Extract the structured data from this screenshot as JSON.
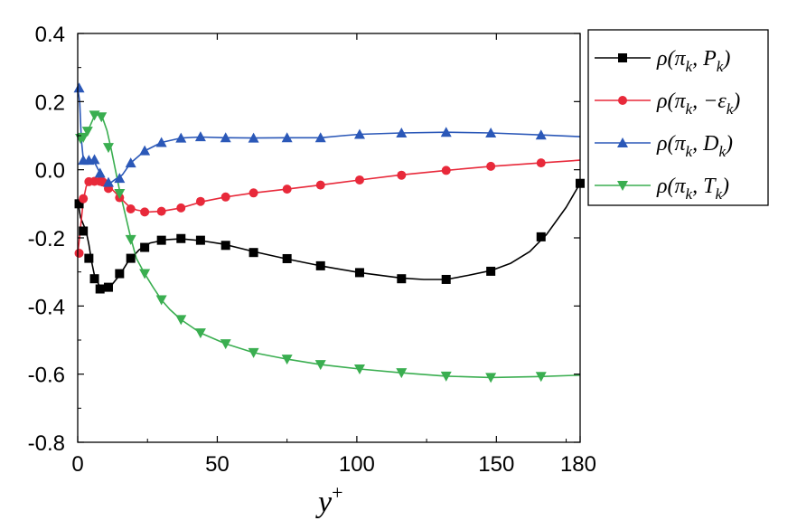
{
  "chart_data": {
    "type": "line",
    "title": "",
    "xlabel": "y",
    "xlabel_sup": "+",
    "ylabel": "",
    "xlim": [
      0,
      180
    ],
    "ylim": [
      -0.8,
      0.4
    ],
    "xticks": [
      0,
      50,
      100,
      150,
      180
    ],
    "xtick_labels": [
      "0",
      "50",
      "100",
      "150",
      "180"
    ],
    "yticks": [
      0.4,
      0.2,
      0.0,
      -0.2,
      -0.4,
      -0.6,
      -0.8
    ],
    "ytick_labels": [
      "0.4",
      "0.2",
      "0.0",
      "-0.2",
      "-0.4",
      "-0.6",
      "-0.8"
    ],
    "grid": false,
    "legend_position": "right",
    "series": [
      {
        "name": "ρ(π_k, P_k)",
        "color": "#000000",
        "marker": "square",
        "legend": [
          {
            "t": "ρ(π"
          },
          {
            "t": "k",
            "sub": true
          },
          {
            "t": ", P"
          },
          {
            "t": "k",
            "sub": true
          },
          {
            "t": ")"
          }
        ],
        "curve": [
          [
            0,
            -0.09
          ],
          [
            1,
            -0.14
          ],
          [
            3,
            -0.18
          ],
          [
            4,
            -0.22
          ],
          [
            5,
            -0.27
          ],
          [
            6,
            -0.31
          ],
          [
            8,
            -0.345
          ],
          [
            10,
            -0.35
          ],
          [
            12,
            -0.34
          ],
          [
            15,
            -0.31
          ],
          [
            18,
            -0.27
          ],
          [
            22,
            -0.235
          ],
          [
            26,
            -0.215
          ],
          [
            32,
            -0.205
          ],
          [
            37,
            -0.203
          ],
          [
            44,
            -0.208
          ],
          [
            52,
            -0.218
          ],
          [
            63,
            -0.24
          ],
          [
            75,
            -0.262
          ],
          [
            87,
            -0.282
          ],
          [
            101,
            -0.302
          ],
          [
            116,
            -0.318
          ],
          [
            124,
            -0.322
          ],
          [
            132,
            -0.322
          ],
          [
            140,
            -0.31
          ],
          [
            148,
            -0.296
          ],
          [
            155,
            -0.275
          ],
          [
            162,
            -0.24
          ],
          [
            168,
            -0.19
          ],
          [
            175,
            -0.11
          ],
          [
            180,
            -0.04
          ]
        ],
        "markers": [
          [
            0.5,
            -0.1
          ],
          [
            2,
            -0.18
          ],
          [
            4,
            -0.26
          ],
          [
            6,
            -0.32
          ],
          [
            8,
            -0.35
          ],
          [
            11,
            -0.345
          ],
          [
            15,
            -0.305
          ],
          [
            19,
            -0.26
          ],
          [
            24,
            -0.228
          ],
          [
            30,
            -0.207
          ],
          [
            37,
            -0.202
          ],
          [
            44,
            -0.207
          ],
          [
            53,
            -0.222
          ],
          [
            63,
            -0.243
          ],
          [
            75,
            -0.261
          ],
          [
            87,
            -0.282
          ],
          [
            101,
            -0.302
          ],
          [
            116,
            -0.32
          ],
          [
            132,
            -0.322
          ],
          [
            148,
            -0.298
          ],
          [
            166,
            -0.197
          ],
          [
            180,
            -0.04
          ]
        ]
      },
      {
        "name": "ρ(π_k, −ε_k)",
        "color": "#e8293a",
        "marker": "circle",
        "legend": [
          {
            "t": "ρ(π"
          },
          {
            "t": "k",
            "sub": true
          },
          {
            "t": ", −ε"
          },
          {
            "t": "k",
            "sub": true
          },
          {
            "t": ")"
          }
        ],
        "curve": [
          [
            0,
            -0.25
          ],
          [
            1,
            -0.17
          ],
          [
            2,
            -0.09
          ],
          [
            3,
            -0.05
          ],
          [
            4,
            -0.035
          ],
          [
            6,
            -0.033
          ],
          [
            8,
            -0.034
          ],
          [
            10,
            -0.04
          ],
          [
            12,
            -0.055
          ],
          [
            15,
            -0.08
          ],
          [
            18,
            -0.105
          ],
          [
            21,
            -0.118
          ],
          [
            25,
            -0.124
          ],
          [
            30,
            -0.122
          ],
          [
            37,
            -0.112
          ],
          [
            45,
            -0.093
          ],
          [
            53,
            -0.08
          ],
          [
            63,
            -0.068
          ],
          [
            75,
            -0.057
          ],
          [
            87,
            -0.045
          ],
          [
            101,
            -0.03
          ],
          [
            116,
            -0.015
          ],
          [
            132,
            -0.002
          ],
          [
            148,
            0.01
          ],
          [
            166,
            0.02
          ],
          [
            180,
            0.028
          ]
        ],
        "markers": [
          [
            0.5,
            -0.245
          ],
          [
            2,
            -0.085
          ],
          [
            4,
            -0.035
          ],
          [
            6,
            -0.034
          ],
          [
            8,
            -0.034
          ],
          [
            9,
            -0.036
          ],
          [
            11,
            -0.055
          ],
          [
            15,
            -0.082
          ],
          [
            19,
            -0.115
          ],
          [
            24,
            -0.124
          ],
          [
            30,
            -0.122
          ],
          [
            37,
            -0.112
          ],
          [
            44,
            -0.093
          ],
          [
            53,
            -0.08
          ],
          [
            63,
            -0.068
          ],
          [
            75,
            -0.057
          ],
          [
            87,
            -0.045
          ],
          [
            101,
            -0.03
          ],
          [
            116,
            -0.016
          ],
          [
            132,
            -0.002
          ],
          [
            148,
            0.01
          ],
          [
            166,
            0.02
          ]
        ]
      },
      {
        "name": "ρ(π_k, D_k)",
        "color": "#2b58b8",
        "marker": "triangle-up",
        "legend": [
          {
            "t": "ρ(π"
          },
          {
            "t": "k",
            "sub": true
          },
          {
            "t": ", D"
          },
          {
            "t": "k",
            "sub": true
          },
          {
            "t": ")"
          }
        ],
        "curve": [
          [
            0,
            0.24
          ],
          [
            0.7,
            0.2
          ],
          [
            1.3,
            0.09
          ],
          [
            2,
            0.03
          ],
          [
            3,
            0.025
          ],
          [
            4,
            0.025
          ],
          [
            5,
            0.028
          ],
          [
            6,
            0.022
          ],
          [
            8,
            -0.01
          ],
          [
            10,
            -0.035
          ],
          [
            12,
            -0.037
          ],
          [
            14,
            -0.025
          ],
          [
            16,
            -0.015
          ],
          [
            19,
            0.02
          ],
          [
            24,
            0.055
          ],
          [
            30,
            0.08
          ],
          [
            37,
            0.093
          ],
          [
            44,
            0.096
          ],
          [
            53,
            0.094
          ],
          [
            63,
            0.093
          ],
          [
            75,
            0.094
          ],
          [
            87,
            0.094
          ],
          [
            95,
            0.1
          ],
          [
            101,
            0.104
          ],
          [
            116,
            0.108
          ],
          [
            132,
            0.11
          ],
          [
            148,
            0.108
          ],
          [
            166,
            0.102
          ],
          [
            180,
            0.097
          ]
        ],
        "markers": [
          [
            0.5,
            0.24
          ],
          [
            2,
            0.028
          ],
          [
            4,
            0.028
          ],
          [
            6,
            0.03
          ],
          [
            8,
            -0.01
          ],
          [
            11,
            -0.037
          ],
          [
            15,
            -0.025
          ],
          [
            19,
            0.02
          ],
          [
            24,
            0.056
          ],
          [
            30,
            0.08
          ],
          [
            37,
            0.093
          ],
          [
            44,
            0.097
          ],
          [
            53,
            0.094
          ],
          [
            63,
            0.093
          ],
          [
            75,
            0.094
          ],
          [
            87,
            0.094
          ],
          [
            101,
            0.104
          ],
          [
            116,
            0.108
          ],
          [
            132,
            0.11
          ],
          [
            148,
            0.108
          ],
          [
            166,
            0.102
          ]
        ]
      },
      {
        "name": "ρ(π_k, T_k)",
        "color": "#3aae50",
        "marker": "triangle-down",
        "legend": [
          {
            "t": "ρ(π"
          },
          {
            "t": "k",
            "sub": true
          },
          {
            "t": ", T"
          },
          {
            "t": "k",
            "sub": true
          },
          {
            "t": ")"
          }
        ],
        "curve": [
          [
            0,
            0.09
          ],
          [
            1.5,
            0.093
          ],
          [
            3,
            0.105
          ],
          [
            4.5,
            0.13
          ],
          [
            6,
            0.158
          ],
          [
            7.5,
            0.162
          ],
          [
            9,
            0.15
          ],
          [
            10.5,
            0.115
          ],
          [
            12,
            0.06
          ],
          [
            13.5,
            0.0
          ],
          [
            15,
            -0.06
          ],
          [
            17,
            -0.13
          ],
          [
            19,
            -0.2
          ],
          [
            21,
            -0.26
          ],
          [
            24,
            -0.305
          ],
          [
            27,
            -0.345
          ],
          [
            30,
            -0.382
          ],
          [
            33,
            -0.41
          ],
          [
            37,
            -0.44
          ],
          [
            44,
            -0.479
          ],
          [
            53,
            -0.511
          ],
          [
            63,
            -0.537
          ],
          [
            75,
            -0.556
          ],
          [
            87,
            -0.572
          ],
          [
            101,
            -0.585
          ],
          [
            116,
            -0.596
          ],
          [
            132,
            -0.606
          ],
          [
            148,
            -0.61
          ],
          [
            166,
            -0.607
          ],
          [
            180,
            -0.603
          ]
        ],
        "markers": [
          [
            1,
            0.092
          ],
          [
            2,
            0.095
          ],
          [
            3.5,
            0.113
          ],
          [
            6,
            0.16
          ],
          [
            8.5,
            0.155
          ],
          [
            11,
            0.065
          ],
          [
            15,
            -0.07
          ],
          [
            19,
            -0.205
          ],
          [
            24,
            -0.305
          ],
          [
            30,
            -0.382
          ],
          [
            37,
            -0.44
          ],
          [
            44,
            -0.479
          ],
          [
            53,
            -0.511
          ],
          [
            63,
            -0.537
          ],
          [
            75,
            -0.556
          ],
          [
            87,
            -0.572
          ],
          [
            101,
            -0.585
          ],
          [
            116,
            -0.596
          ],
          [
            132,
            -0.606
          ],
          [
            148,
            -0.61
          ],
          [
            166,
            -0.607
          ]
        ]
      }
    ]
  }
}
